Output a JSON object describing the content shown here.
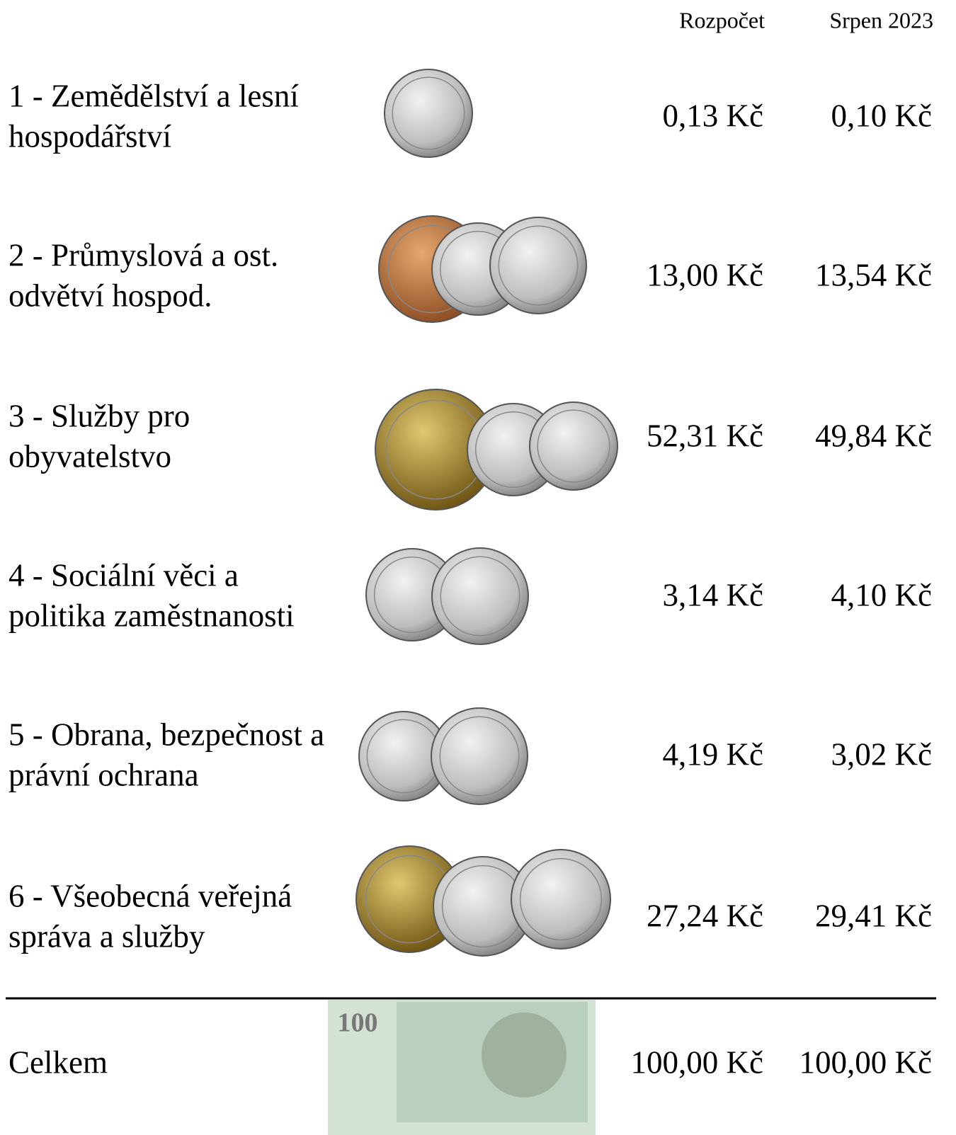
{
  "header": {
    "columns": [
      "Rozpočet",
      "Srpen 2023"
    ]
  },
  "table": {
    "rows": [
      {
        "label": [
          "1 - Zemědělství a lesní",
          "hospodářství"
        ],
        "values": [
          "0,13 Kč",
          "0,10 Kč"
        ]
      },
      {
        "label": [
          "2 - Průmyslová a ost.",
          "odvětví hospod."
        ],
        "values": [
          "13,00 Kč",
          "13,54 Kč"
        ]
      },
      {
        "label": [
          "3 - Služby pro",
          "obyvatelstvo"
        ],
        "values": [
          "52,31 Kč",
          "49,84 Kč"
        ]
      },
      {
        "label": [
          "4 - Sociální věci a",
          "politika zaměstnanosti"
        ],
        "values": [
          "3,14 Kč",
          "4,10 Kč"
        ]
      },
      {
        "label": [
          "5 - Obrana, bezpečnost a",
          "právní ochrana"
        ],
        "values": [
          "4,19 Kč",
          "3,02 Kč"
        ]
      },
      {
        "label": [
          "6 - Všeobecná veřejná",
          "správa a služby"
        ],
        "values": [
          "27,24 Kč",
          "29,41 Kč"
        ]
      }
    ],
    "total": {
      "label": "Celkem",
      "values": [
        "100,00 Kč",
        "100,00 Kč"
      ]
    }
  }
}
